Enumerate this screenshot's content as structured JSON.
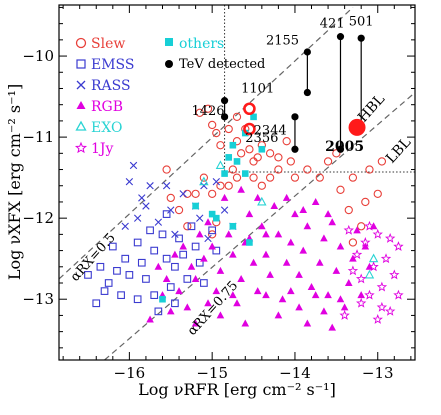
{
  "chart_data": {
    "type": "scatter",
    "xlabel": "Log νRFR [erg cm⁻² s⁻¹]",
    "ylabel": "Log νXFX [erg cm⁻² s⁻¹]",
    "xlim": [
      -16.85,
      -12.55
    ],
    "ylim": [
      -13.75,
      -9.37
    ],
    "x_ticks": [
      -16,
      -15,
      -14,
      -13
    ],
    "x_tick_labels": [
      "−16",
      "−15",
      "−14",
      "−13"
    ],
    "y_ticks": [
      -13,
      -12,
      -11,
      -10
    ],
    "y_tick_labels": [
      "−13",
      "−12",
      "−11",
      "−10"
    ],
    "grid": false,
    "legend_position": "top-left",
    "colors": {
      "slew": "#e8403a",
      "emss": "#3b3bd0",
      "rass": "#3b3bd0",
      "rgb": "#e000e0",
      "exo": "#2ad4d4",
      "onejy": "#e000e0",
      "others": "#17cfd6",
      "tev": "#000000",
      "highlight": "#ff1a1a",
      "guide": "#666666"
    },
    "legend": {
      "slew": "Slew",
      "emss": "EMSS",
      "rass": "RASS",
      "rgb": "RGB",
      "exo": "EXO",
      "onejy": "1Jy",
      "others": "others",
      "tev": "TeV detected"
    },
    "annotations": {
      "hbl": "HBL",
      "lbl": "LBL",
      "alpha_rx_05": "αRX=0.5",
      "alpha_rx_075": "αRX=0.75"
    },
    "guide_lines": [
      {
        "name": "alpha_rx_05",
        "points": [
          [
            -16.85,
            -12.75
          ],
          [
            -13.3,
            -9.4
          ]
        ]
      },
      {
        "name": "alpha_rx_075",
        "points": [
          [
            -16.3,
            -13.75
          ],
          [
            -12.55,
            -10.45
          ]
        ]
      }
    ],
    "dotted_lines": [
      {
        "points": [
          [
            -14.85,
            -9.37
          ],
          [
            -14.85,
            -11.43
          ]
        ]
      },
      {
        "points": [
          [
            -14.85,
            -11.43
          ],
          [
            -12.55,
            -11.43
          ]
        ]
      }
    ],
    "tev_sources": [
      {
        "label": "501",
        "x": -13.2,
        "top": -9.78,
        "bottom": -10.88,
        "label_pos": [
          -13.2,
          -9.62
        ]
      },
      {
        "label": "421",
        "x": -13.45,
        "top": -9.76,
        "bottom": -11.15,
        "label_pos": [
          -13.55,
          -9.65
        ]
      },
      {
        "label": "2155",
        "x": -13.85,
        "top": -9.95,
        "bottom": -10.45,
        "label_pos": [
          -14.15,
          -9.86
        ]
      },
      {
        "label": "2344",
        "x": -14.0,
        "top": -10.75,
        "bottom": -11.15,
        "label_pos": [
          -14.3,
          -10.97
        ]
      },
      {
        "label": "1426",
        "x": -14.85,
        "top": -10.55,
        "bottom": -10.75,
        "label_pos": [
          -15.05,
          -10.73
        ]
      },
      {
        "label": "1101",
        "x": -14.55,
        "top": -10.65,
        "bottom": -10.65,
        "label_pos": [
          -14.45,
          -10.45
        ]
      },
      {
        "label": "2356",
        "x": -14.55,
        "top": -10.9,
        "bottom": -10.9,
        "label_pos": [
          -14.4,
          -11.06
        ]
      }
    ],
    "highlight_source": {
      "label": "2005",
      "x": -13.25,
      "y": -10.88,
      "label_pos": [
        -13.4,
        -11.17
      ]
    },
    "series": [
      {
        "name": "Slew",
        "marker": "open-circle",
        "points": [
          [
            -15.3,
            -11.7
          ],
          [
            -15.2,
            -11.7
          ],
          [
            -15.0,
            -11.7
          ],
          [
            -14.9,
            -11.6
          ],
          [
            -15.1,
            -11.5
          ],
          [
            -14.8,
            -11.6
          ],
          [
            -14.7,
            -11.5
          ],
          [
            -14.5,
            -11.5
          ],
          [
            -14.4,
            -11.6
          ],
          [
            -14.3,
            -11.5
          ],
          [
            -14.2,
            -11.4
          ],
          [
            -14.0,
            -11.5
          ],
          [
            -13.85,
            -11.4
          ],
          [
            -13.7,
            -11.5
          ],
          [
            -13.6,
            -11.3
          ],
          [
            -13.5,
            -11.2
          ],
          [
            -13.3,
            -11.5
          ],
          [
            -13.1,
            -11.4
          ],
          [
            -12.95,
            -11.3
          ],
          [
            -14.75,
            -11.4
          ],
          [
            -14.65,
            -11.2
          ],
          [
            -14.5,
            -11.3
          ],
          [
            -14.4,
            -11.1
          ],
          [
            -14.3,
            -11.2
          ],
          [
            -14.1,
            -11.05
          ],
          [
            -14.9,
            -11.1
          ],
          [
            -14.8,
            -10.9
          ],
          [
            -14.7,
            -11.05
          ],
          [
            -14.6,
            -10.9
          ],
          [
            -14.95,
            -10.95
          ],
          [
            -15.0,
            -10.85
          ],
          [
            -15.15,
            -10.7
          ],
          [
            -15.05,
            -10.65
          ],
          [
            -14.45,
            -11.25
          ],
          [
            -15.5,
            -11.75
          ],
          [
            -15.4,
            -11.9
          ],
          [
            -15.3,
            -12.1
          ],
          [
            -15.0,
            -12.2
          ],
          [
            -14.95,
            -12.05
          ],
          [
            -13.45,
            -11.65
          ],
          [
            -13.35,
            -11.9
          ],
          [
            -13.2,
            -12.1
          ],
          [
            -13.3,
            -12.3
          ],
          [
            -13.15,
            -11.8
          ],
          [
            -13.0,
            -11.7
          ],
          [
            -14.2,
            -11.25
          ],
          [
            -14.05,
            -11.3
          ],
          [
            -15.55,
            -11.4
          ],
          [
            -14.7,
            -10.75
          ],
          [
            -14.55,
            -11.15
          ]
        ]
      },
      {
        "name": "EMSS",
        "marker": "open-square",
        "points": [
          [
            -16.5,
            -12.7
          ],
          [
            -16.35,
            -12.6
          ],
          [
            -16.25,
            -12.8
          ],
          [
            -16.15,
            -12.65
          ],
          [
            -16.1,
            -12.95
          ],
          [
            -16.0,
            -12.7
          ],
          [
            -16.05,
            -12.5
          ],
          [
            -16.2,
            -12.35
          ],
          [
            -16.3,
            -12.9
          ],
          [
            -15.9,
            -12.3
          ],
          [
            -15.85,
            -12.55
          ],
          [
            -15.8,
            -12.75
          ],
          [
            -15.7,
            -12.4
          ],
          [
            -15.7,
            -12.95
          ],
          [
            -15.65,
            -13.15
          ],
          [
            -15.6,
            -12.2
          ],
          [
            -15.55,
            -12.5
          ],
          [
            -15.5,
            -12.85
          ],
          [
            -15.45,
            -12.6
          ],
          [
            -15.4,
            -12.25
          ],
          [
            -15.35,
            -12.45
          ],
          [
            -15.3,
            -12.75
          ],
          [
            -15.25,
            -12.1
          ],
          [
            -15.2,
            -12.35
          ],
          [
            -15.15,
            -12.55
          ],
          [
            -15.1,
            -12.8
          ],
          [
            -15.0,
            -12.15
          ],
          [
            -14.95,
            -12.4
          ],
          [
            -16.4,
            -13.05
          ],
          [
            -15.9,
            -13.0
          ],
          [
            -15.75,
            -12.15
          ],
          [
            -15.55,
            -11.95
          ],
          [
            -15.45,
            -13.05
          ]
        ]
      },
      {
        "name": "RASS",
        "marker": "cross",
        "points": [
          [
            -16.05,
            -12.1
          ],
          [
            -16.0,
            -11.55
          ],
          [
            -15.9,
            -12.0
          ],
          [
            -15.8,
            -11.85
          ],
          [
            -15.75,
            -11.6
          ],
          [
            -15.65,
            -12.05
          ],
          [
            -15.55,
            -11.6
          ],
          [
            -15.5,
            -11.9
          ],
          [
            -15.45,
            -12.2
          ],
          [
            -15.35,
            -11.7
          ],
          [
            -15.2,
            -11.85
          ],
          [
            -15.15,
            -12.0
          ],
          [
            -15.1,
            -11.6
          ],
          [
            -15.05,
            -12.25
          ],
          [
            -14.95,
            -11.55
          ],
          [
            -14.85,
            -11.9
          ],
          [
            -14.75,
            -12.1
          ],
          [
            -15.95,
            -11.35
          ],
          [
            -15.85,
            -11.75
          ]
        ]
      },
      {
        "name": "RGB",
        "marker": "filled-triangle",
        "points": [
          [
            -15.75,
            -13.25
          ],
          [
            -15.6,
            -12.95
          ],
          [
            -15.5,
            -13.15
          ],
          [
            -15.4,
            -12.9
          ],
          [
            -15.3,
            -13.1
          ],
          [
            -15.2,
            -12.75
          ],
          [
            -15.1,
            -12.5
          ],
          [
            -15.0,
            -12.35
          ],
          [
            -14.95,
            -12.9
          ],
          [
            -14.9,
            -12.65
          ],
          [
            -14.8,
            -12.2
          ],
          [
            -14.75,
            -12.45
          ],
          [
            -14.7,
            -13.05
          ],
          [
            -14.65,
            -12.75
          ],
          [
            -14.6,
            -12.3
          ],
          [
            -14.55,
            -11.95
          ],
          [
            -14.5,
            -12.55
          ],
          [
            -14.45,
            -12.9
          ],
          [
            -14.4,
            -12.1
          ],
          [
            -14.35,
            -12.45
          ],
          [
            -14.3,
            -12.7
          ],
          [
            -14.25,
            -11.85
          ],
          [
            -14.2,
            -12.2
          ],
          [
            -14.15,
            -13.0
          ],
          [
            -14.1,
            -12.55
          ],
          [
            -14.05,
            -12.3
          ],
          [
            -14.0,
            -11.95
          ],
          [
            -13.95,
            -12.7
          ],
          [
            -13.9,
            -12.4
          ],
          [
            -13.85,
            -12.1
          ],
          [
            -13.8,
            -12.85
          ],
          [
            -13.75,
            -11.8
          ],
          [
            -13.7,
            -12.55
          ],
          [
            -13.65,
            -12.25
          ],
          [
            -13.6,
            -12.95
          ],
          [
            -13.55,
            -12.05
          ],
          [
            -13.5,
            -12.65
          ],
          [
            -13.45,
            -12.35
          ],
          [
            -13.4,
            -13.1
          ],
          [
            -13.35,
            -12.8
          ],
          [
            -13.3,
            -12.5
          ],
          [
            -13.25,
            -12.15
          ],
          [
            -13.2,
            -12.95
          ],
          [
            -13.1,
            -12.6
          ],
          [
            -15.35,
            -12.35
          ],
          [
            -15.25,
            -12.6
          ],
          [
            -15.15,
            -12.2
          ],
          [
            -15.05,
            -12.05
          ],
          [
            -14.85,
            -11.75
          ],
          [
            -14.65,
            -11.65
          ],
          [
            -14.45,
            -11.75
          ],
          [
            -14.35,
            -12.95
          ],
          [
            -14.2,
            -13.2
          ],
          [
            -14.05,
            -12.9
          ],
          [
            -13.95,
            -13.1
          ],
          [
            -13.85,
            -13.3
          ],
          [
            -13.75,
            -12.95
          ],
          [
            -13.65,
            -13.15
          ],
          [
            -13.55,
            -13.35
          ],
          [
            -15.65,
            -12.6
          ],
          [
            -15.45,
            -12.45
          ],
          [
            -15.55,
            -12.75
          ],
          [
            -14.9,
            -13.2
          ],
          [
            -14.6,
            -13.3
          ],
          [
            -14.75,
            -12.95
          ],
          [
            -15.05,
            -13.05
          ],
          [
            -15.2,
            -13.3
          ],
          [
            -13.45,
            -13.0
          ],
          [
            -13.15,
            -12.35
          ],
          [
            -13.05,
            -12.1
          ],
          [
            -14.55,
            -12.25
          ],
          [
            -14.35,
            -12.2
          ],
          [
            -14.1,
            -11.75
          ],
          [
            -13.9,
            -11.9
          ],
          [
            -13.6,
            -11.95
          ]
        ]
      },
      {
        "name": "EXO",
        "marker": "open-triangle",
        "points": [
          [
            -15.1,
            -11.55
          ],
          [
            -14.9,
            -11.35
          ],
          [
            -14.4,
            -11.8
          ],
          [
            -13.1,
            -12.7
          ],
          [
            -13.05,
            -12.5
          ]
        ]
      },
      {
        "name": "1Jy",
        "marker": "open-star",
        "points": [
          [
            -13.35,
            -12.15
          ],
          [
            -13.25,
            -12.45
          ],
          [
            -13.2,
            -12.75
          ],
          [
            -13.15,
            -12.3
          ],
          [
            -13.1,
            -12.95
          ],
          [
            -13.05,
            -12.6
          ],
          [
            -13.0,
            -12.2
          ],
          [
            -12.95,
            -12.85
          ],
          [
            -12.9,
            -12.5
          ],
          [
            -12.85,
            -13.15
          ],
          [
            -12.8,
            -12.7
          ],
          [
            -12.75,
            -12.35
          ],
          [
            -13.3,
            -12.65
          ],
          [
            -13.0,
            -13.25
          ],
          [
            -12.95,
            -13.1
          ],
          [
            -13.2,
            -13.05
          ],
          [
            -12.85,
            -12.25
          ],
          [
            -13.4,
            -13.2
          ],
          [
            -12.75,
            -12.95
          ],
          [
            -13.1,
            -12.1
          ]
        ]
      },
      {
        "name": "others",
        "marker": "filled-square",
        "points": [
          [
            -15.6,
            -13.0
          ],
          [
            -15.2,
            -11.85
          ],
          [
            -15.0,
            -11.95
          ],
          [
            -14.85,
            -11.45
          ],
          [
            -14.8,
            -11.25
          ],
          [
            -14.75,
            -11.1
          ],
          [
            -14.7,
            -11.3
          ],
          [
            -14.6,
            -10.95
          ],
          [
            -14.5,
            -10.75
          ],
          [
            -14.4,
            -11.15
          ],
          [
            -14.6,
            -11.45
          ],
          [
            -14.75,
            -12.1
          ],
          [
            -14.55,
            -12.3
          ],
          [
            -14.95,
            -12.0
          ]
        ]
      }
    ]
  }
}
